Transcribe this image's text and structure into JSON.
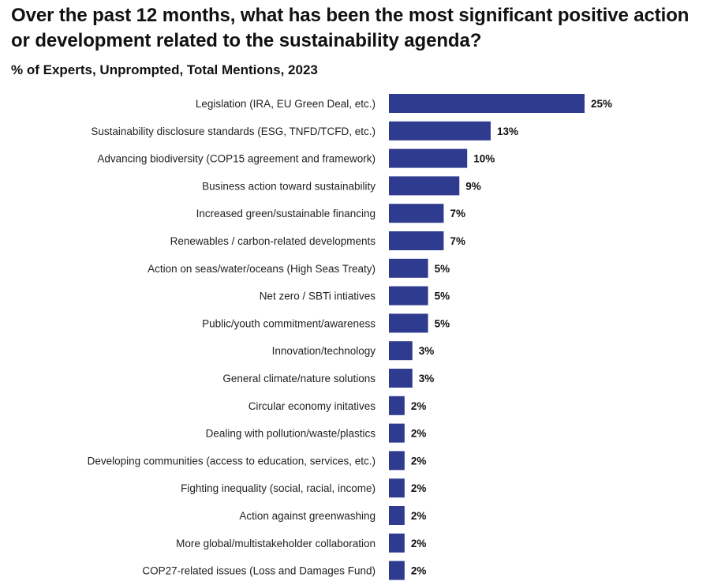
{
  "colors": {
    "bar": "#2f3b8f"
  },
  "chart_data": {
    "type": "bar",
    "orientation": "horizontal",
    "title": "Over the past 12 months, what has been the most significant positive action or development related to the sustainability agenda?",
    "subtitle": "% of Experts, Unprompted, Total Mentions, 2023",
    "xlabel": "",
    "ylabel": "",
    "unit": "%",
    "xlim": [
      0,
      25
    ],
    "categories": [
      "Legislation (IRA, EU Green Deal, etc.)",
      "Sustainability disclosure standards (ESG, TNFD/TCFD, etc.)",
      "Advancing biodiversity (COP15 agreement and framework)",
      "Business action toward sustainability",
      "Increased green/sustainable financing",
      "Renewables / carbon-related developments",
      "Action on seas/water/oceans (High Seas Treaty)",
      "Net zero / SBTi intiatives",
      "Public/youth commitment/awareness",
      "Innovation/technology",
      "General climate/nature solutions",
      "Circular economy initatives",
      "Dealing with pollution/waste/plastics",
      "Developing communities (access to education, services, etc.)",
      "Fighting inequality (social, racial, income)",
      "Action against greenwashing",
      "More global/multistakeholder collaboration",
      "COP27-related issues (Loss and Damages Fund)"
    ],
    "values": [
      25,
      13,
      10,
      9,
      7,
      7,
      5,
      5,
      5,
      3,
      3,
      2,
      2,
      2,
      2,
      2,
      2,
      2
    ],
    "value_labels": [
      "25%",
      "13%",
      "10%",
      "9%",
      "7%",
      "7%",
      "5%",
      "5%",
      "5%",
      "3%",
      "3%",
      "2%",
      "2%",
      "2%",
      "2%",
      "2%",
      "2%",
      "2%"
    ]
  }
}
